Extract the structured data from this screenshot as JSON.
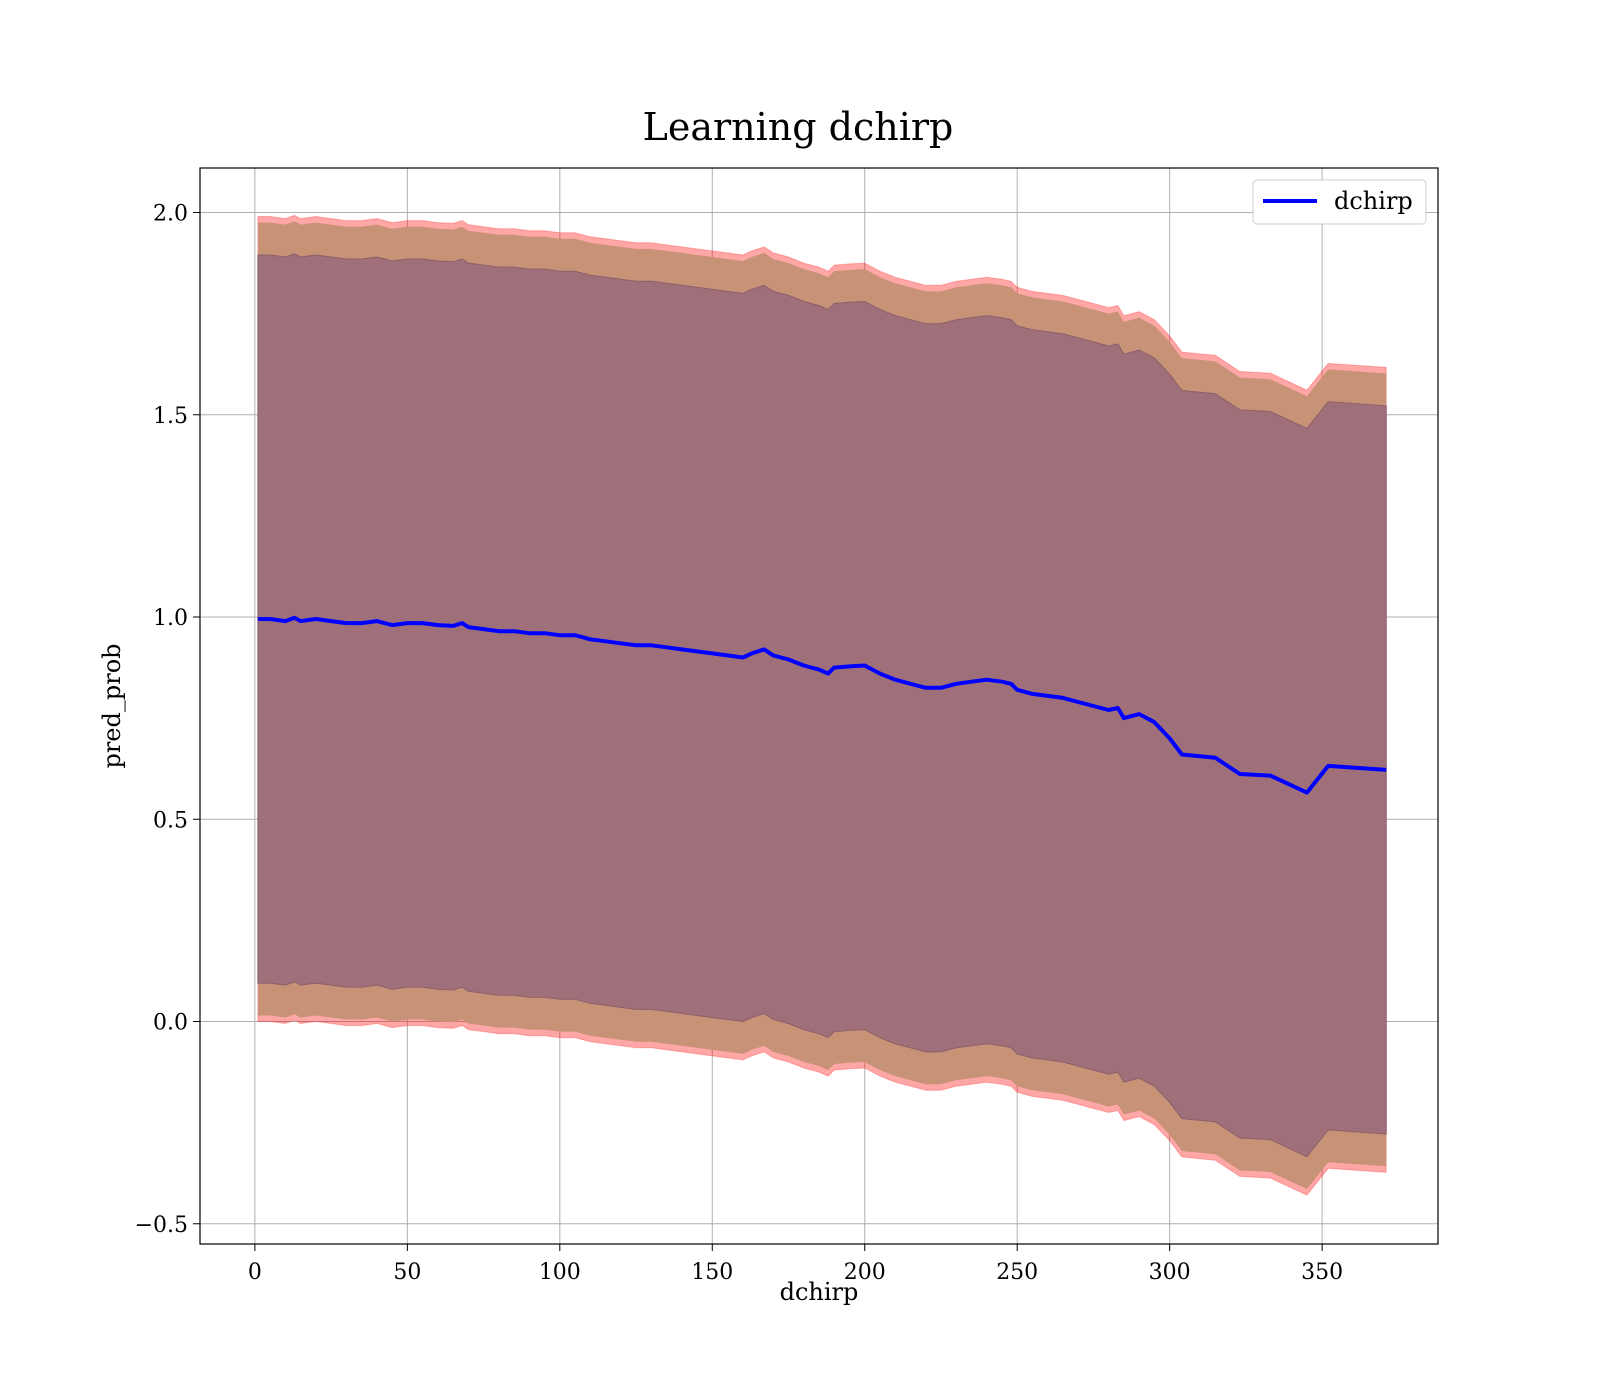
{
  "chart_data": {
    "type": "line",
    "title": "Learning dchirp",
    "xlabel": "dchirp",
    "ylabel": "pred_prob",
    "xlim": [
      -18,
      388
    ],
    "ylim": [
      -0.55,
      2.11
    ],
    "xticks": [
      0,
      50,
      100,
      150,
      200,
      250,
      300,
      350
    ],
    "yticks": [
      -0.5,
      0.0,
      0.5,
      1.0,
      1.5,
      2.0
    ],
    "xtick_labels": [
      "0",
      "50",
      "100",
      "150",
      "200",
      "250",
      "300",
      "350"
    ],
    "ytick_labels": [
      "−0.5",
      "0.0",
      "0.5",
      "1.0",
      "1.5",
      "2.0"
    ],
    "grid": true,
    "legend": {
      "placement": "top-right",
      "entries": [
        "dchirp"
      ]
    },
    "colors": {
      "line": "#0000ff",
      "outer_band": "#ff0000",
      "middle_band": "#c89277",
      "inner_band": "#a0707a"
    },
    "bands": {
      "inner_halfwidth": 0.9,
      "middle_halfwidth": 0.98,
      "outer_halfwidth": 0.995
    },
    "series": [
      {
        "name": "dchirp",
        "x": [
          1,
          5,
          10,
          13,
          15,
          20,
          25,
          30,
          35,
          40,
          45,
          50,
          55,
          60,
          65,
          68,
          70,
          75,
          80,
          85,
          90,
          95,
          100,
          105,
          110,
          115,
          120,
          125,
          130,
          135,
          140,
          145,
          150,
          155,
          160,
          163,
          167,
          170,
          175,
          180,
          185,
          188,
          190,
          195,
          200,
          205,
          210,
          215,
          220,
          225,
          230,
          235,
          240,
          245,
          248,
          250,
          255,
          260,
          265,
          270,
          275,
          280,
          283,
          285,
          290,
          295,
          300,
          304,
          315,
          323,
          333,
          345,
          352,
          371
        ],
        "y": [
          0.995,
          0.995,
          0.99,
          0.998,
          0.99,
          0.995,
          0.99,
          0.985,
          0.985,
          0.99,
          0.98,
          0.985,
          0.985,
          0.98,
          0.978,
          0.985,
          0.975,
          0.97,
          0.965,
          0.965,
          0.96,
          0.96,
          0.955,
          0.955,
          0.945,
          0.94,
          0.935,
          0.93,
          0.93,
          0.925,
          0.92,
          0.915,
          0.91,
          0.905,
          0.9,
          0.91,
          0.92,
          0.905,
          0.895,
          0.88,
          0.87,
          0.86,
          0.875,
          0.878,
          0.88,
          0.86,
          0.845,
          0.835,
          0.825,
          0.825,
          0.835,
          0.84,
          0.845,
          0.84,
          0.835,
          0.82,
          0.81,
          0.805,
          0.8,
          0.79,
          0.78,
          0.77,
          0.775,
          0.75,
          0.76,
          0.74,
          0.7,
          0.66,
          0.652,
          0.612,
          0.608,
          0.566,
          0.632,
          0.622
        ]
      }
    ]
  }
}
